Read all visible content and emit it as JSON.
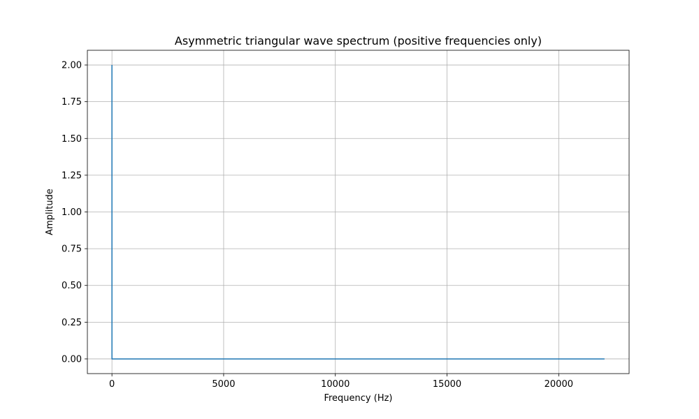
{
  "chart_data": {
    "type": "line",
    "title": "Asymmetric triangular wave spectrum (positive frequencies only)",
    "xlabel": "Frequency (Hz)",
    "ylabel": "Amplitude",
    "xlim": [
      -1100,
      23150
    ],
    "ylim": [
      -0.1,
      2.1
    ],
    "xticks": [
      0,
      5000,
      10000,
      15000,
      20000
    ],
    "xtick_labels": [
      "0",
      "5000",
      "10000",
      "15000",
      "20000"
    ],
    "yticks": [
      0.0,
      0.25,
      0.5,
      0.75,
      1.0,
      1.25,
      1.5,
      1.75,
      2.0
    ],
    "ytick_labels": [
      "0.00",
      "0.25",
      "0.50",
      "0.75",
      "1.00",
      "1.25",
      "1.50",
      "1.75",
      "2.00"
    ],
    "grid": true,
    "series": [
      {
        "color": "#1f77b4",
        "x": [
          0,
          1,
          2,
          22050
        ],
        "y": [
          2.0,
          0.0,
          0.0,
          0.0
        ]
      }
    ]
  }
}
